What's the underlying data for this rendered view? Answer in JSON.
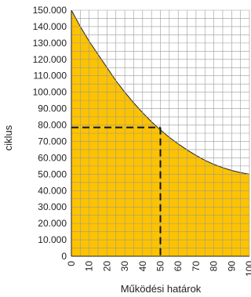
{
  "chart_data": {
    "type": "area",
    "title": "",
    "xlabel": "Működési határok",
    "ylabel": "ciklus",
    "xlim": [
      0,
      100
    ],
    "ylim": [
      0,
      150000
    ],
    "x_ticks": [
      "0",
      "10",
      "20",
      "30",
      "40",
      "50",
      "60",
      "70",
      "80",
      "90",
      "100"
    ],
    "y_ticks": [
      "0",
      "10.000",
      "20.000",
      "30.000",
      "40.000",
      "50.000",
      "60.000",
      "70.000",
      "80.000",
      "90.000",
      "100.000",
      "110.000",
      "120.000",
      "130.000",
      "140.000",
      "150.000"
    ],
    "grid": true,
    "series": [
      {
        "x": [
          0,
          5,
          10,
          15,
          20,
          25,
          30,
          35,
          40,
          45,
          50,
          55,
          60,
          65,
          70,
          75,
          80,
          85,
          90,
          95,
          100
        ],
        "y": [
          150000,
          140000,
          131000,
          123000,
          115000,
          107000,
          100000,
          93500,
          87500,
          82000,
          77000,
          72500,
          68500,
          64800,
          61500,
          58500,
          56000,
          54000,
          52300,
          51000,
          50000
        ]
      }
    ],
    "annotation": {
      "x": 50,
      "y": 78500,
      "style": "dashed-crosshair"
    },
    "colors": {
      "fill": "#FDC300",
      "line": "#222222",
      "grid": "#9a9a9a",
      "dash": "#111111"
    }
  }
}
